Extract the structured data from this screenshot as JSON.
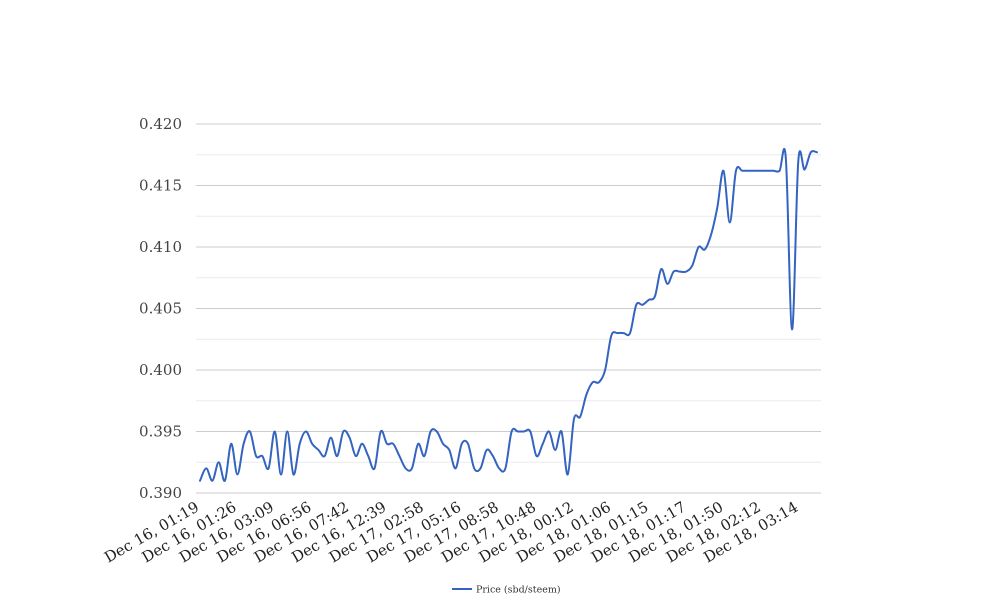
{
  "chart_data": {
    "type": "line",
    "title": "",
    "xlabel": "",
    "ylabel": "",
    "ylim": [
      0.39,
      0.42
    ],
    "y_ticks": [
      "0.390",
      "0.395",
      "0.400",
      "0.405",
      "0.410",
      "0.415",
      "0.420"
    ],
    "y_tick_values": [
      0.39,
      0.395,
      0.4,
      0.405,
      0.41,
      0.415,
      0.42
    ],
    "x_tick_labels": [
      "Dec 16, 01:19",
      "Dec 16, 01:26",
      "Dec 16, 03:09",
      "Dec 16, 06:56",
      "Dec 16, 07:42",
      "Dec 16, 12:39",
      "Dec 17, 02:58",
      "Dec 17, 05:16",
      "Dec 17, 08:58",
      "Dec 17, 10:48",
      "Dec 18, 00:12",
      "Dec 18, 01:06",
      "Dec 18, 01:15",
      "Dec 18, 01:17",
      "Dec 18, 01:50",
      "Dec 18, 02:12",
      "Dec 18, 03:14"
    ],
    "grid": true,
    "minor_grid": true,
    "legend_position": "bottom-center",
    "colors": {
      "series": "#3463c0",
      "major_grid": "#cccccc",
      "minor_grid": "#ebebeb"
    },
    "series": [
      {
        "name": "Price (sbd/steem)",
        "values": [
          0.391,
          0.392,
          0.391,
          0.3925,
          0.391,
          0.394,
          0.3915,
          0.394,
          0.395,
          0.393,
          0.393,
          0.392,
          0.395,
          0.3915,
          0.395,
          0.3915,
          0.394,
          0.395,
          0.394,
          0.3935,
          0.393,
          0.3945,
          0.393,
          0.395,
          0.3945,
          0.393,
          0.394,
          0.393,
          0.392,
          0.395,
          0.394,
          0.394,
          0.393,
          0.392,
          0.392,
          0.394,
          0.393,
          0.395,
          0.395,
          0.394,
          0.3935,
          0.392,
          0.394,
          0.394,
          0.392,
          0.392,
          0.3935,
          0.393,
          0.392,
          0.392,
          0.395,
          0.395,
          0.395,
          0.395,
          0.393,
          0.394,
          0.395,
          0.3935,
          0.395,
          0.3915,
          0.396,
          0.3962,
          0.398,
          0.399,
          0.399,
          0.4,
          0.4028,
          0.403,
          0.403,
          0.403,
          0.4053,
          0.4053,
          0.4057,
          0.406,
          0.4082,
          0.407,
          0.408,
          0.408,
          0.408,
          0.4085,
          0.41,
          0.4098,
          0.411,
          0.4132,
          0.4162,
          0.412,
          0.4162,
          0.4162,
          0.4162,
          0.4162,
          0.4162,
          0.4162,
          0.4162,
          0.4162,
          0.4172,
          0.4033,
          0.417,
          0.4163,
          0.4177,
          0.4177
        ]
      }
    ]
  }
}
